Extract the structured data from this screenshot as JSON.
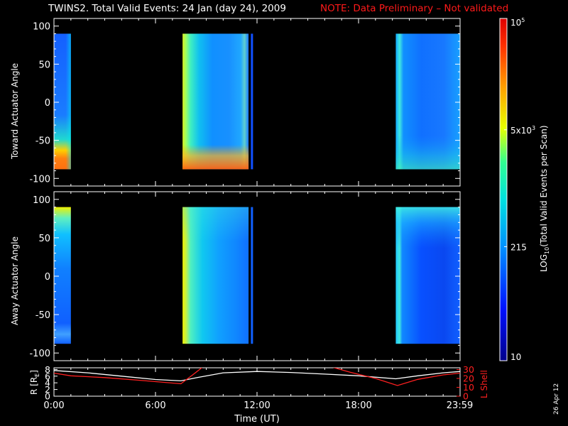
{
  "header": {
    "title": "TWINS2. Total Valid Events: 24 Jan (day  24), 2009",
    "note": "NOTE: Data Preliminary – Not validated"
  },
  "side_date": "26 Apr 12",
  "colors": {
    "note": "#ff1a1a",
    "l_shell": "#ff2020",
    "r_trace": "#ffffff"
  },
  "chart_data": [
    {
      "type": "heatmap",
      "panel": "toward",
      "ylabel": "Toward Actuator Angle",
      "ylim": [
        -110,
        110
      ],
      "yticks": [
        100,
        50,
        0,
        -50,
        -100
      ],
      "xlim": [
        0,
        24
      ],
      "intervals": [
        [
          0,
          1
        ],
        [
          7.6,
          11.5
        ],
        [
          20.2,
          24
        ]
      ],
      "gap_lines": [
        11.7
      ],
      "angle_range": [
        -88,
        90
      ]
    },
    {
      "type": "heatmap",
      "panel": "away",
      "ylabel": "Away Actuator Angle",
      "ylim": [
        -110,
        110
      ],
      "yticks": [
        100,
        50,
        0,
        -50,
        -100
      ],
      "xlim": [
        0,
        24
      ],
      "intervals": [
        [
          0,
          1
        ],
        [
          7.6,
          11.5
        ],
        [
          20.2,
          24
        ]
      ],
      "gap_lines": [
        11.7
      ],
      "angle_range": [
        -88,
        90
      ]
    },
    {
      "type": "line",
      "panel": "orbit",
      "ylabel": "R [R",
      "ylabel_sub": "E",
      "ylabel_end": "]",
      "ylim": [
        0,
        8.5
      ],
      "yticks": [
        8,
        6,
        4,
        2,
        0
      ],
      "y2label": "L Shell",
      "y2lim": [
        0,
        32
      ],
      "y2ticks": [
        30,
        20,
        10,
        0
      ],
      "xlim": [
        0,
        24
      ],
      "xticks": [
        {
          "x": 0,
          "label": "0:00"
        },
        {
          "x": 6,
          "label": "6:00"
        },
        {
          "x": 12,
          "label": "12:00"
        },
        {
          "x": 18,
          "label": "18:00"
        },
        {
          "x": 23.98,
          "label": "23:59"
        }
      ],
      "xlabel": "Time (UT)",
      "series": [
        {
          "name": "R",
          "axis": "left",
          "x": [
            0,
            2,
            4,
            6,
            7.5,
            8.5,
            10,
            12,
            14,
            16,
            18,
            20.2,
            21.5,
            23,
            24
          ],
          "y": [
            7.7,
            7.0,
            6.0,
            5.0,
            4.6,
            5.6,
            7.0,
            7.4,
            7.1,
            6.6,
            6.1,
            5.2,
            6.1,
            7.0,
            7.4
          ]
        },
        {
          "name": "L",
          "axis": "right",
          "segment": 1,
          "x": [
            0,
            1,
            3,
            5,
            7.5,
            8.2,
            8.8
          ],
          "y": [
            26,
            23,
            21,
            18,
            14,
            24,
            33
          ]
        },
        {
          "name": "L",
          "axis": "right",
          "segment": 2,
          "x": [
            16.4,
            17.5,
            19,
            20.3,
            21.5,
            23,
            24
          ],
          "y": [
            33,
            27,
            20,
            12,
            19,
            24,
            26
          ]
        }
      ]
    }
  ],
  "colorbar": {
    "label": "LOG",
    "label_sub": "10",
    "label_end": "(Total Valid Events per Scan)",
    "ticks": [
      {
        "value": 100000,
        "base": "10",
        "exp": "5"
      },
      {
        "value": 5000,
        "base": "5x10",
        "exp": "3"
      },
      {
        "value": 215,
        "base": "215",
        "exp": ""
      },
      {
        "value": 10,
        "base": "10",
        "exp": ""
      }
    ],
    "range": [
      10,
      100000
    ]
  }
}
